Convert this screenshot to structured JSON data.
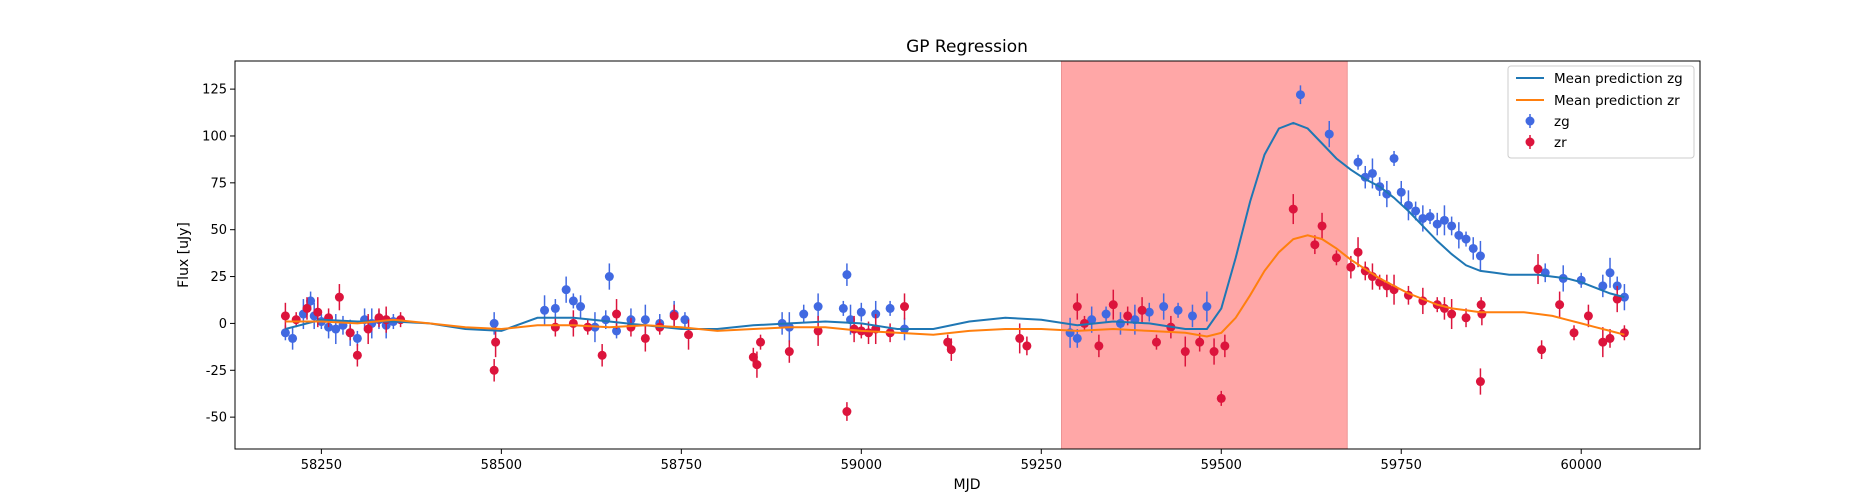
{
  "chart_data": {
    "type": "scatter",
    "title": "GP Regression",
    "xlabel": "MJD",
    "ylabel": "Flux [uJy]",
    "xlim": [
      58130,
      60165
    ],
    "ylim": [
      -67,
      140
    ],
    "xticks": [
      58250,
      58500,
      58750,
      59000,
      59250,
      59500,
      59750,
      60000
    ],
    "yticks": [
      -50,
      -25,
      0,
      25,
      50,
      75,
      100,
      125
    ],
    "grid": false,
    "legend_position": "top-right",
    "highlight_span": {
      "x0": 59278,
      "x1": 59675,
      "color": "#ffa7a7"
    },
    "colors": {
      "mean_zg": "#1f77b4",
      "mean_zr": "#ff7f0e",
      "zg": "#4169e1",
      "zr": "#dc143c"
    },
    "series": [
      {
        "name": "Mean prediction zg",
        "kind": "line",
        "color": "#1f77b4",
        "x": [
          58200,
          58250,
          58300,
          58350,
          58400,
          58450,
          58500,
          58550,
          58600,
          58650,
          58700,
          58750,
          58800,
          58850,
          58900,
          58950,
          59000,
          59050,
          59100,
          59150,
          59200,
          59250,
          59300,
          59350,
          59400,
          59450,
          59480,
          59500,
          59520,
          59540,
          59560,
          59580,
          59600,
          59620,
          59640,
          59660,
          59680,
          59700,
          59720,
          59740,
          59760,
          59780,
          59800,
          59820,
          59840,
          59860,
          59880,
          59900,
          59920,
          59940,
          59960,
          59980,
          60000,
          60020,
          60040,
          60060
        ],
        "y": [
          -3,
          2,
          1,
          1,
          0,
          -3,
          -4,
          3,
          3,
          1,
          -1,
          -3,
          -3,
          -1,
          0,
          1,
          0,
          -3,
          -3,
          1,
          3,
          2,
          -1,
          1,
          0,
          -3,
          -3,
          8,
          35,
          65,
          90,
          104,
          107,
          104,
          96,
          88,
          82,
          77,
          73,
          67,
          60,
          52,
          44,
          37,
          31,
          28,
          27,
          26,
          26,
          26,
          25,
          24,
          22,
          19,
          16,
          14
        ]
      },
      {
        "name": "Mean prediction zr",
        "kind": "line",
        "color": "#ff7f0e",
        "x": [
          58200,
          58250,
          58300,
          58350,
          58400,
          58450,
          58500,
          58550,
          58600,
          58650,
          58700,
          58750,
          58800,
          58850,
          58900,
          58950,
          59000,
          59050,
          59100,
          59150,
          59200,
          59250,
          59300,
          59350,
          59400,
          59450,
          59480,
          59500,
          59520,
          59540,
          59560,
          59580,
          59600,
          59620,
          59640,
          59660,
          59680,
          59700,
          59720,
          59740,
          59760,
          59780,
          59800,
          59820,
          59840,
          59860,
          59880,
          59900,
          59920,
          59940,
          59960,
          59980,
          60000,
          60020,
          60040,
          60060
        ],
        "y": [
          1,
          1,
          0,
          2,
          0,
          -2,
          -3,
          -1,
          -1,
          -2,
          -1,
          -2,
          -4,
          -3,
          -2,
          -2,
          -4,
          -5,
          -6,
          -4,
          -3,
          -3,
          -4,
          -3,
          -4,
          -5,
          -7,
          -5,
          3,
          15,
          28,
          38,
          45,
          47,
          45,
          40,
          34,
          29,
          24,
          20,
          16,
          13,
          10,
          8,
          7,
          6,
          6,
          6,
          6,
          5,
          4,
          2,
          0,
          -2,
          -4,
          -6
        ]
      },
      {
        "name": "zg",
        "kind": "errorbar",
        "color": "#4169e1",
        "x": [
          58200,
          58210,
          58225,
          58235,
          58240,
          58250,
          58260,
          58270,
          58280,
          58290,
          58300,
          58310,
          58320,
          58330,
          58340,
          58350,
          58490,
          58560,
          58575,
          58590,
          58600,
          58610,
          58630,
          58645,
          58650,
          58660,
          58680,
          58700,
          58720,
          58740,
          58755,
          58890,
          58900,
          58920,
          58940,
          58975,
          58980,
          58985,
          59000,
          59020,
          59040,
          59060,
          59290,
          59300,
          59320,
          59340,
          59360,
          59380,
          59400,
          59420,
          59440,
          59460,
          59480,
          59610,
          59650,
          59690,
          59700,
          59710,
          59720,
          59730,
          59740,
          59750,
          59760,
          59770,
          59780,
          59790,
          59800,
          59810,
          59820,
          59830,
          59840,
          59850,
          59860,
          59950,
          59975,
          60000,
          60030,
          60040,
          60050,
          60060
        ],
        "y": [
          -5,
          -8,
          5,
          12,
          4,
          1,
          -2,
          -3,
          -1,
          -5,
          -8,
          2,
          0,
          2,
          -1,
          1,
          0,
          7,
          8,
          18,
          12,
          9,
          -2,
          2,
          25,
          -4,
          2,
          2,
          0,
          5,
          2,
          0,
          -2,
          5,
          9,
          8,
          26,
          2,
          6,
          5,
          8,
          -3,
          -5,
          -8,
          2,
          5,
          0,
          2,
          6,
          9,
          7,
          4,
          9,
          122,
          101,
          86,
          78,
          80,
          73,
          69,
          88,
          70,
          63,
          60,
          56,
          57,
          53,
          55,
          52,
          47,
          45,
          40,
          36,
          27,
          24,
          23,
          20,
          27,
          20,
          14
        ]
      },
      {
        "name": "zr",
        "kind": "errorbar",
        "color": "#dc143c",
        "x": [
          58200,
          58215,
          58230,
          58245,
          58260,
          58275,
          58290,
          58300,
          58315,
          58330,
          58340,
          58360,
          58490,
          58492,
          58575,
          58600,
          58620,
          58640,
          58660,
          58680,
          58700,
          58720,
          58740,
          58760,
          58850,
          58855,
          58860,
          58900,
          58940,
          58980,
          58990,
          59000,
          59010,
          59020,
          59040,
          59060,
          59120,
          59125,
          59220,
          59230,
          59300,
          59310,
          59330,
          59350,
          59370,
          59390,
          59410,
          59430,
          59450,
          59470,
          59490,
          59500,
          59505,
          59600,
          59630,
          59640,
          59660,
          59680,
          59690,
          59700,
          59710,
          59720,
          59730,
          59740,
          59760,
          59780,
          59800,
          59810,
          59820,
          59840,
          59860,
          59861,
          59862,
          59940,
          59945,
          59970,
          59990,
          60010,
          60030,
          60040,
          60050,
          60060
        ],
        "y": [
          4,
          2,
          8,
          6,
          3,
          14,
          -5,
          -17,
          -3,
          3,
          2,
          2,
          -25,
          -10,
          -2,
          0,
          -2,
          -17,
          5,
          -2,
          -8,
          -2,
          4,
          -6,
          -18,
          -22,
          -10,
          -15,
          -4,
          -47,
          -3,
          -4,
          -5,
          -3,
          -5,
          9,
          -10,
          -14,
          -8,
          -12,
          9,
          0,
          -12,
          10,
          4,
          7,
          -10,
          -2,
          -15,
          -10,
          -15,
          -40,
          -12,
          61,
          42,
          52,
          35,
          30,
          38,
          28,
          25,
          22,
          20,
          18,
          15,
          12,
          10,
          8,
          5,
          3,
          -31,
          10,
          5,
          29,
          -14,
          10,
          -5,
          4,
          -10,
          -8,
          13,
          -5
        ]
      }
    ]
  }
}
